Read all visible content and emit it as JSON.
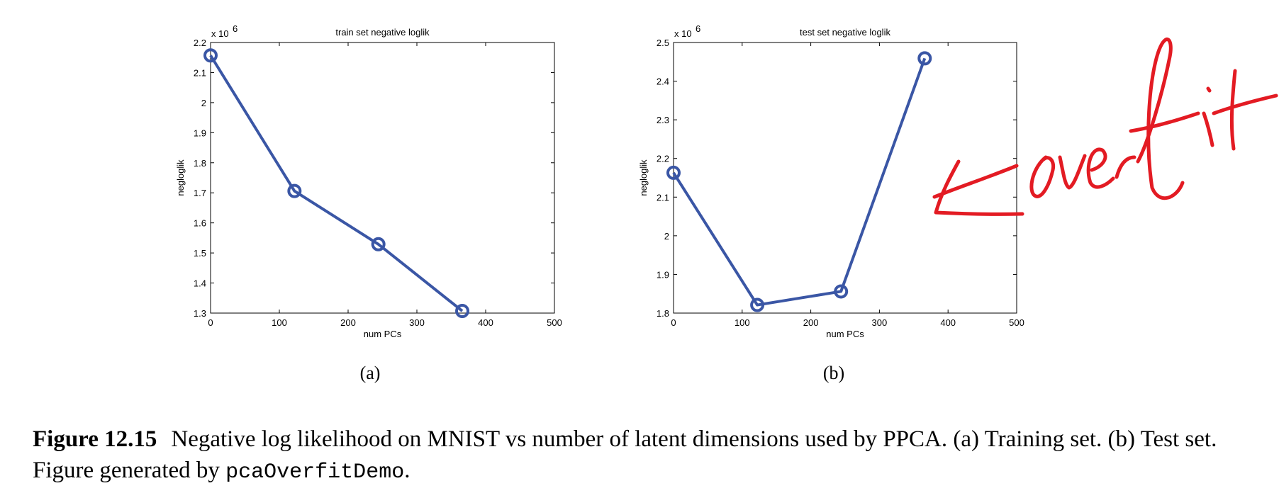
{
  "chart_data": [
    {
      "type": "line",
      "title": "train set negative loglik",
      "xlabel": "num PCs",
      "ylabel": "negloglik",
      "exponent_label": "x 10",
      "exponent_power": "6",
      "xlim": [
        0,
        500
      ],
      "ylim": [
        1.3,
        2.2
      ],
      "xticks": [
        "0",
        "100",
        "200",
        "300",
        "400",
        "500"
      ],
      "yticks": [
        "1.3",
        "1.4",
        "1.5",
        "1.6",
        "1.7",
        "1.8",
        "1.9",
        "2",
        "2.1",
        "2.2"
      ],
      "series": [
        {
          "x": [
            0,
            122,
            244,
            366
          ],
          "y": [
            2.157,
            1.706,
            1.529,
            1.307
          ]
        }
      ],
      "panel_label": "(a)",
      "line_color": "#3a56a5"
    },
    {
      "type": "line",
      "title": "test set negative loglik",
      "xlabel": "num PCs",
      "ylabel": "negloglik",
      "exponent_label": "x 10",
      "exponent_power": "6",
      "xlim": [
        0,
        500
      ],
      "ylim": [
        1.8,
        2.5
      ],
      "xticks": [
        "0",
        "100",
        "200",
        "300",
        "400",
        "500"
      ],
      "yticks": [
        "1.8",
        "1.9",
        "2",
        "2.1",
        "2.2",
        "2.3",
        "2.4",
        "2.5"
      ],
      "series": [
        {
          "x": [
            0,
            122,
            244,
            366
          ],
          "y": [
            2.163,
            1.821,
            1.856,
            2.459
          ]
        }
      ],
      "panel_label": "(b)",
      "line_color": "#3a56a5"
    }
  ],
  "annotation": {
    "text": "overfit",
    "color": "#e31b23"
  },
  "caption": {
    "figure_number": "Figure 12.15",
    "text_before_code": "Negative log likelihood on MNIST vs number of latent dimensions used by PPCA. (a) Training set. (b) Test set. Figure generated by ",
    "code": "pcaOverfitDemo",
    "text_after_code": "."
  }
}
